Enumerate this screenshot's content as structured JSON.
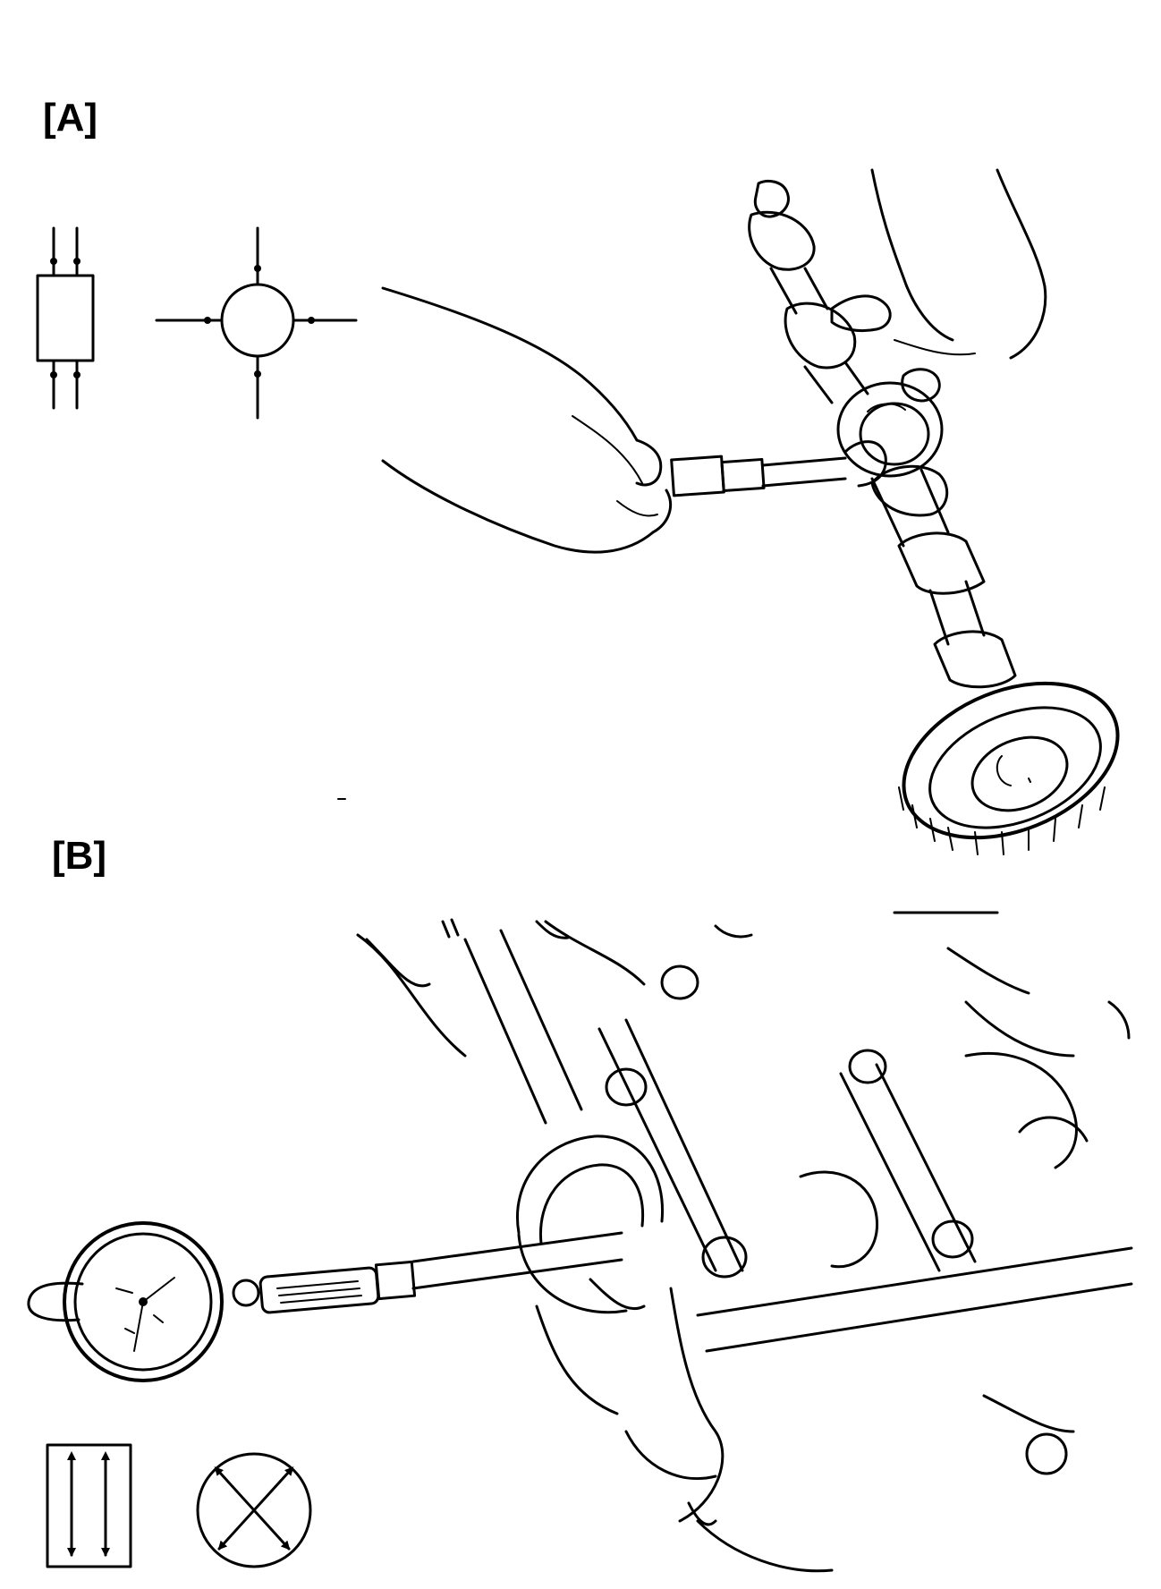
{
  "figure": {
    "panels": [
      {
        "label": "[A]",
        "symbols": [
          "measure-points-rectangle-icon",
          "measure-points-circle-icon"
        ],
        "illustration": "hands-measuring-camshaft-journal-with-micrometer-icon"
      },
      {
        "label": "[B]",
        "symbols": [
          "measure-directions-rectangle-icon",
          "measure-directions-circle-icon"
        ],
        "illustration": "dial-bore-gauge-in-bearing-bore-icon"
      }
    ],
    "colors": {
      "ink": "#000000",
      "paper": "#ffffff"
    }
  }
}
